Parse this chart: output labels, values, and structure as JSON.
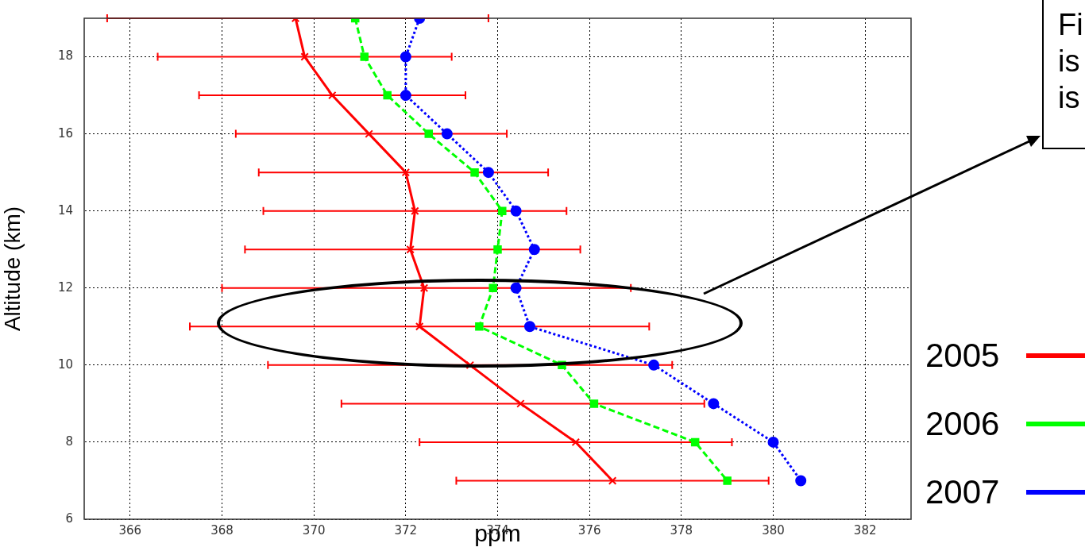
{
  "chart_data": {
    "type": "line",
    "xlabel": "ppm",
    "ylabel": "Altitude (km)",
    "xlim": [
      365,
      383
    ],
    "xticks": [
      366,
      368,
      370,
      372,
      374,
      376,
      378,
      380,
      382
    ],
    "ylim": [
      6,
      19
    ],
    "yticks": [
      6,
      8,
      10,
      12,
      14,
      16,
      18
    ],
    "grid": true,
    "legend": "right",
    "annotations": [
      "Fi",
      "is",
      "is"
    ],
    "series": [
      {
        "name": "2005",
        "color": "#ff0000",
        "marker": "cross",
        "line_style": "solid",
        "x": [
          369.6,
          369.8,
          370.4,
          371.2,
          372.0,
          372.2,
          372.1,
          372.4,
          372.3,
          373.4,
          374.5,
          375.7,
          376.5
        ],
        "values": [
          19,
          18,
          17,
          16,
          15,
          14,
          13,
          12,
          11,
          10,
          9,
          8,
          7
        ],
        "xerrors": [
          [
            365.5,
            373.8
          ],
          [
            366.6,
            373.0
          ],
          [
            367.5,
            373.3
          ],
          [
            368.3,
            374.2
          ],
          [
            368.8,
            375.1
          ],
          [
            368.9,
            375.5
          ],
          [
            368.5,
            375.8
          ],
          [
            368.0,
            376.9
          ],
          [
            367.3,
            377.3
          ],
          [
            369.0,
            377.8
          ],
          [
            370.6,
            378.5
          ],
          [
            372.3,
            379.1
          ],
          [
            373.1,
            379.9
          ]
        ]
      },
      {
        "name": "2006",
        "color": "#00ff00",
        "marker": "square",
        "line_style": "dashed",
        "x": [
          370.9,
          371.1,
          371.6,
          372.5,
          373.5,
          374.1,
          374.0,
          373.9,
          373.6,
          375.4,
          376.1,
          378.3,
          379.0
        ],
        "values": [
          19,
          18,
          17,
          16,
          15,
          14,
          13,
          12,
          11,
          10,
          9,
          8,
          7
        ]
      },
      {
        "name": "2007",
        "color": "#0000ff",
        "marker": "circle",
        "line_style": "dotted",
        "x": [
          372.3,
          372.0,
          372.0,
          372.9,
          373.8,
          374.4,
          374.8,
          374.4,
          374.7,
          377.4,
          378.7,
          380.0,
          380.6
        ],
        "values": [
          19,
          18,
          17,
          16,
          15,
          14,
          13,
          12,
          11,
          10,
          9,
          8,
          7
        ]
      }
    ]
  }
}
